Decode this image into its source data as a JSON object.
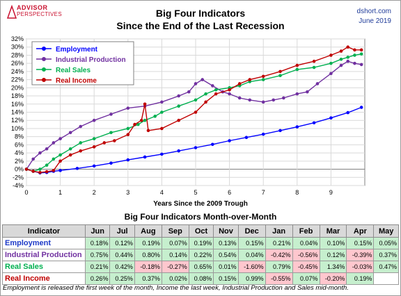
{
  "logo": {
    "line1": "ADVISOR",
    "line2": "PERSPECTIVES"
  },
  "brand": {
    "site": "dshort.com",
    "date": "June 2019"
  },
  "title": {
    "line1": "Big Four Indicators",
    "line2": "Since the End of the Last Recession"
  },
  "chart_data": {
    "type": "line",
    "xlabel": "Years Since the 2009 Trough",
    "ylabel": "",
    "xlim": [
      0,
      10
    ],
    "ylim": [
      -4,
      32
    ],
    "x_ticks": [
      0,
      1,
      2,
      3,
      4,
      5,
      6,
      7,
      8,
      9
    ],
    "y_ticks": [
      "-4%",
      "-2%",
      "0%",
      "2%",
      "4%",
      "6%",
      "8%",
      "10%",
      "12%",
      "14%",
      "16%",
      "18%",
      "20%",
      "22%",
      "24%",
      "26%",
      "28%",
      "30%",
      "32%"
    ],
    "grid": true,
    "legend": "top-left",
    "series": [
      {
        "name": "Employment",
        "color": "#0000ff",
        "x": [
          0,
          0.2,
          0.4,
          0.6,
          0.8,
          1.0,
          1.5,
          2.0,
          2.5,
          3.0,
          3.5,
          4.0,
          4.5,
          5.0,
          5.5,
          6.0,
          6.5,
          7.0,
          7.5,
          8.0,
          8.5,
          9.0,
          9.5,
          9.9
        ],
        "y": [
          0,
          -0.5,
          -0.9,
          -0.8,
          -0.5,
          -0.3,
          0.2,
          0.8,
          1.5,
          2.3,
          3.0,
          3.7,
          4.5,
          5.3,
          6.1,
          7.0,
          7.8,
          8.6,
          9.5,
          10.4,
          11.4,
          12.6,
          13.9,
          15.2
        ]
      },
      {
        "name": "Industrial Production",
        "color": "#7030a0",
        "x": [
          0,
          0.2,
          0.4,
          0.6,
          0.8,
          1.0,
          1.3,
          1.6,
          2.0,
          2.5,
          3.0,
          3.5,
          4.0,
          4.5,
          4.8,
          5.0,
          5.2,
          5.5,
          5.8,
          6.0,
          6.3,
          6.6,
          7.0,
          7.3,
          7.6,
          8.0,
          8.3,
          8.6,
          9.0,
          9.3,
          9.5,
          9.7,
          9.9
        ],
        "y": [
          0,
          2.5,
          4.0,
          5.0,
          6.5,
          7.5,
          9.0,
          10.5,
          12.0,
          13.5,
          15.0,
          15.5,
          16.5,
          18.0,
          19.0,
          21.0,
          22.0,
          20.5,
          19.0,
          18.5,
          17.5,
          17.0,
          16.5,
          17.0,
          17.5,
          18.5,
          19.0,
          21.0,
          23.5,
          25.5,
          26.5,
          26.0,
          25.7
        ]
      },
      {
        "name": "Real Sales",
        "color": "#00b050",
        "x": [
          0,
          0.2,
          0.4,
          0.6,
          0.8,
          1.0,
          1.3,
          1.6,
          2.0,
          2.5,
          3.0,
          3.3,
          3.5,
          3.8,
          4.0,
          4.5,
          5.0,
          5.3,
          5.6,
          6.0,
          6.3,
          6.6,
          7.0,
          7.5,
          8.0,
          8.5,
          9.0,
          9.3,
          9.5,
          9.7,
          9.9
        ],
        "y": [
          0,
          -0.5,
          0.0,
          1.0,
          2.5,
          3.5,
          5.0,
          6.5,
          7.5,
          9.0,
          10.0,
          11.0,
          12.0,
          13.0,
          14.0,
          15.5,
          17.0,
          18.5,
          19.5,
          20.0,
          20.5,
          21.5,
          22.0,
          23.0,
          24.5,
          25.0,
          26.0,
          27.0,
          27.5,
          28.0,
          28.3
        ]
      },
      {
        "name": "Real Income",
        "color": "#c00000",
        "x": [
          0,
          0.2,
          0.4,
          0.6,
          0.8,
          1.0,
          1.3,
          1.6,
          2.0,
          2.3,
          2.6,
          3.0,
          3.2,
          3.4,
          3.5,
          3.6,
          4.0,
          4.5,
          5.0,
          5.3,
          5.6,
          6.0,
          6.3,
          6.6,
          7.0,
          7.5,
          8.0,
          8.5,
          9.0,
          9.3,
          9.5,
          9.7,
          9.9
        ],
        "y": [
          0,
          -0.5,
          -0.8,
          -0.6,
          -0.3,
          2.0,
          3.5,
          4.5,
          5.5,
          6.5,
          7.0,
          8.5,
          11.0,
          12.0,
          16.0,
          9.5,
          10.0,
          12.0,
          14.0,
          16.5,
          18.5,
          19.5,
          21.0,
          22.0,
          22.8,
          24.0,
          25.5,
          26.5,
          28.0,
          29.0,
          30.0,
          29.3,
          29.3
        ]
      }
    ]
  },
  "table": {
    "title": "Big Four Indicators Month-over-Month",
    "headers": [
      "Indicator",
      "Jun",
      "Jul",
      "Aug",
      "Sep",
      "Oct",
      "Nov",
      "Dec",
      "Jan",
      "Feb",
      "Mar",
      "Apr",
      "May"
    ],
    "rows": [
      {
        "label": "Employment",
        "color": "#1f3bc8",
        "values": [
          "0.18%",
          "0.12%",
          "0.19%",
          "0.07%",
          "0.19%",
          "0.13%",
          "0.15%",
          "0.21%",
          "0.04%",
          "0.10%",
          "0.15%",
          "0.05%"
        ]
      },
      {
        "label": "Industrial Production",
        "color": "#7030a0",
        "values": [
          "0.75%",
          "0.44%",
          "0.80%",
          "0.14%",
          "0.22%",
          "0.54%",
          "0.04%",
          "-0.42%",
          "-0.56%",
          "0.12%",
          "-0.39%",
          "0.37%"
        ]
      },
      {
        "label": "Real Sales",
        "color": "#00b050",
        "values": [
          "0.21%",
          "0.42%",
          "-0.18%",
          "-0.27%",
          "0.65%",
          "0.01%",
          "-1.60%",
          "0.79%",
          "-0.45%",
          "1.34%",
          "-0.03%",
          "0.47%"
        ]
      },
      {
        "label": "Real Income",
        "color": "#c00000",
        "values": [
          "0.26%",
          "0.25%",
          "0.37%",
          "0.02%",
          "0.08%",
          "0.15%",
          "0.99%",
          "-0.55%",
          "0.07%",
          "-0.20%",
          "0.19%",
          ""
        ]
      }
    ]
  },
  "footnote": "Employment is released the first week of the month, Income the last week, Industrial Production and Sales mid-month."
}
